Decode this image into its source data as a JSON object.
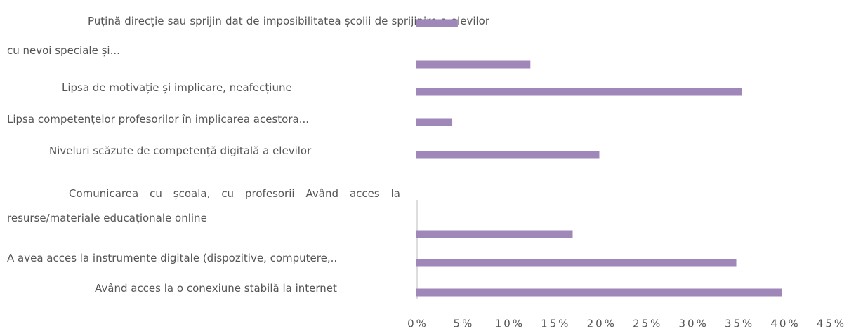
{
  "chart_data": {
    "type": "bar",
    "orientation": "horizontal",
    "categories": [
      "Puțină direcție sau sprijin dat de imposibilitatea școlii de sprijinire a elevilor cu nevoi speciale și...",
      null,
      "Lipsa de motivație și implicare, neafecțiune",
      "Lipsa competențelor profesorilor în implicarea acestora...",
      "Niveluri scăzute de competență digitală a elevilor",
      "Comunicarea cu școala, cu profesorii Având acces la resurse/materiale educaționale online",
      "A avea acces la instrumente digitale (dispozitive, computere,..",
      "Având acces la o conexiune stabilă la internet"
    ],
    "values": [
      4.5,
      12.4,
      35.4,
      3.9,
      19.9,
      17.0,
      34.8,
      39.8
    ],
    "color": "#9f87b9",
    "xlim": [
      0,
      45
    ],
    "xticks": [
      {
        "value": 0,
        "label": "0%"
      },
      {
        "value": 5,
        "label": "5%"
      },
      {
        "value": 10,
        "label": "10%"
      },
      {
        "value": 15,
        "label": "15%"
      },
      {
        "value": 20,
        "label": "20%"
      },
      {
        "value": 25,
        "label": "25%"
      },
      {
        "value": 30,
        "label": "30%"
      },
      {
        "value": 35,
        "label": "35%"
      },
      {
        "value": 40,
        "label": "40%"
      },
      {
        "value": 45,
        "label": "45%"
      }
    ],
    "grid": false
  }
}
